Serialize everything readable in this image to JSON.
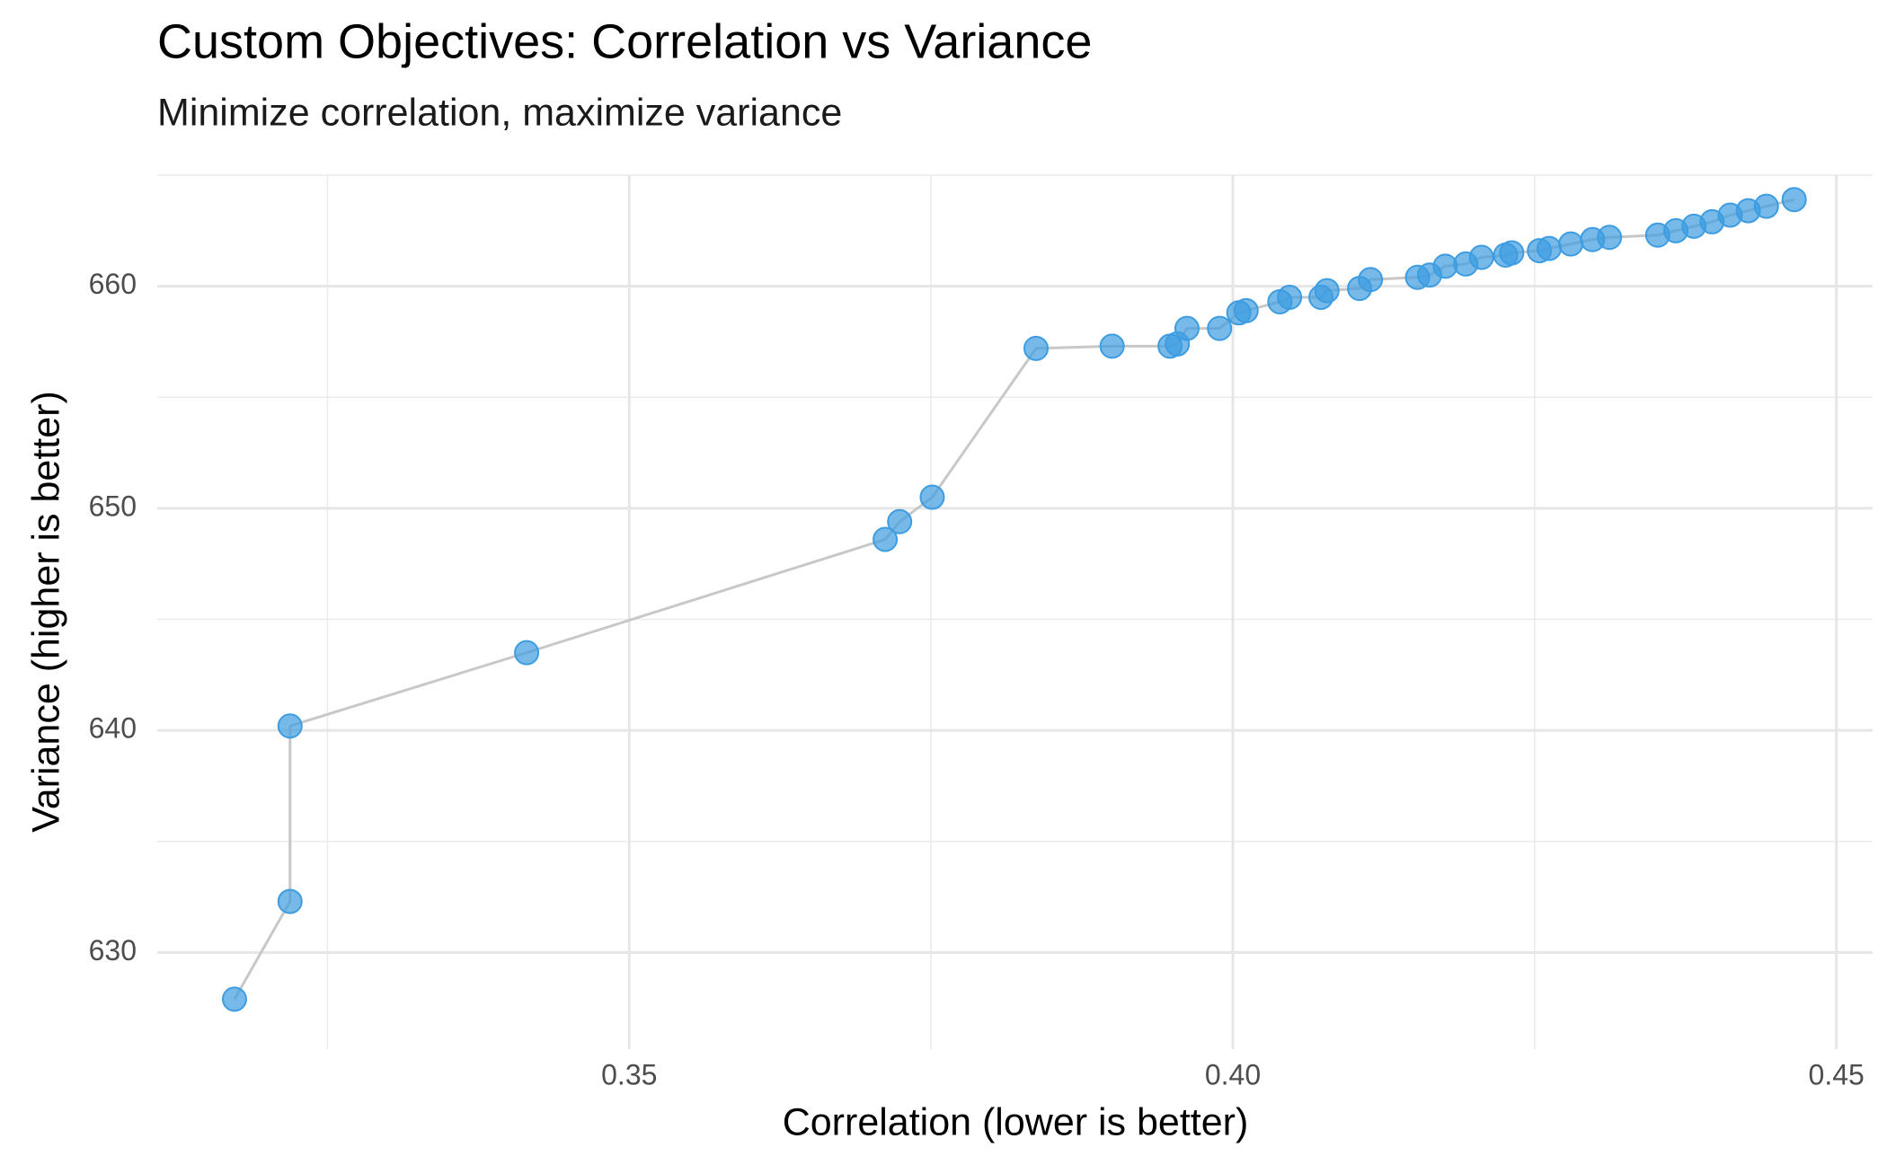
{
  "chart_data": {
    "type": "scatter",
    "title": "Custom Objectives: Correlation vs Variance",
    "subtitle": "Minimize correlation, maximize variance",
    "x_label": "Correlation (lower is better)",
    "y_label": "Variance (higher is better)",
    "x": [
      0.3173,
      0.3219,
      0.3219,
      0.3415,
      0.3712,
      0.3724,
      0.3751,
      0.3837,
      0.39,
      0.3948,
      0.3954,
      0.3962,
      0.3989,
      0.4005,
      0.4011,
      0.4039,
      0.4047,
      0.4073,
      0.4078,
      0.4105,
      0.4114,
      0.4153,
      0.4163,
      0.4176,
      0.4193,
      0.4206,
      0.4226,
      0.4231,
      0.4254,
      0.4262,
      0.428,
      0.4298,
      0.4312,
      0.4352,
      0.4367,
      0.4382,
      0.4397,
      0.4412,
      0.4427,
      0.4442,
      0.4465
    ],
    "y": [
      627.9,
      632.3,
      640.2,
      643.5,
      648.6,
      649.4,
      650.5,
      657.2,
      657.3,
      657.3,
      657.4,
      658.1,
      658.1,
      658.8,
      658.9,
      659.3,
      659.5,
      659.5,
      659.8,
      659.9,
      660.3,
      660.4,
      660.5,
      660.9,
      661.0,
      661.3,
      661.4,
      661.5,
      661.6,
      661.7,
      661.9,
      662.1,
      662.2,
      662.3,
      662.5,
      662.7,
      662.9,
      663.2,
      663.4,
      663.6,
      663.9
    ],
    "xlim": [
      0.3109,
      0.453
    ],
    "ylim": [
      625.65,
      665.0
    ],
    "xticks": [
      0.35,
      {
        "value": 0.4,
        "label": "0.40"
      },
      0.45
    ],
    "yticks": [
      630,
      640,
      650,
      660
    ],
    "x_minor_ticks": [
      0.325,
      0.375,
      0.425
    ],
    "y_minor_ticks": [
      635,
      645,
      655,
      665
    ],
    "grid": true,
    "connect_points": true,
    "point_color": "#3d9de0",
    "line_color": "#c8c8c8"
  }
}
